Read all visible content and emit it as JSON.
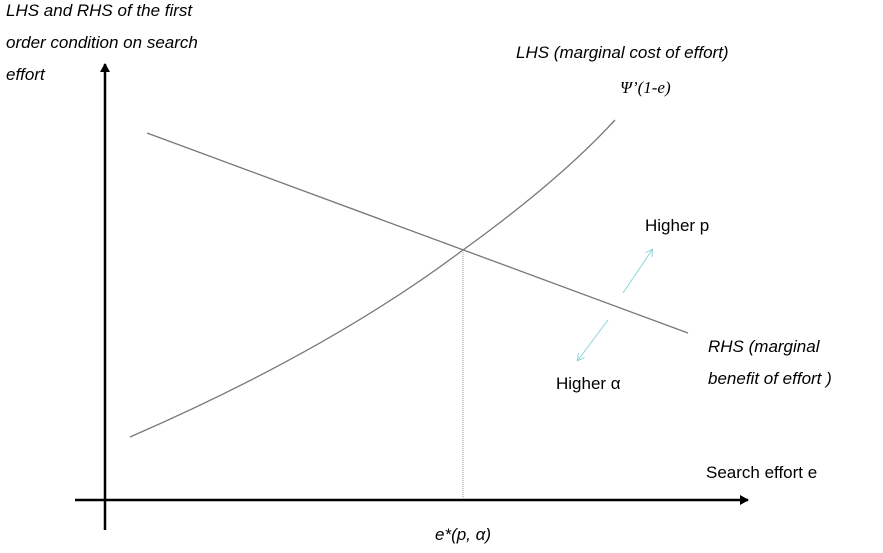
{
  "y_axis_label": [
    "LHS and RHS of the first",
    "order condition on search",
    "effort"
  ],
  "x_axis_label": "Search effort e",
  "lhs_curve": {
    "label": "LHS (marginal cost of effort)",
    "formula": "Ψ’(1-e)"
  },
  "rhs_curve": {
    "label": [
      "RHS (marginal",
      "benefit of effort )"
    ]
  },
  "shift_up": "Higher p",
  "shift_down": "Higher α",
  "equilibrium": "e*(p, α)"
}
